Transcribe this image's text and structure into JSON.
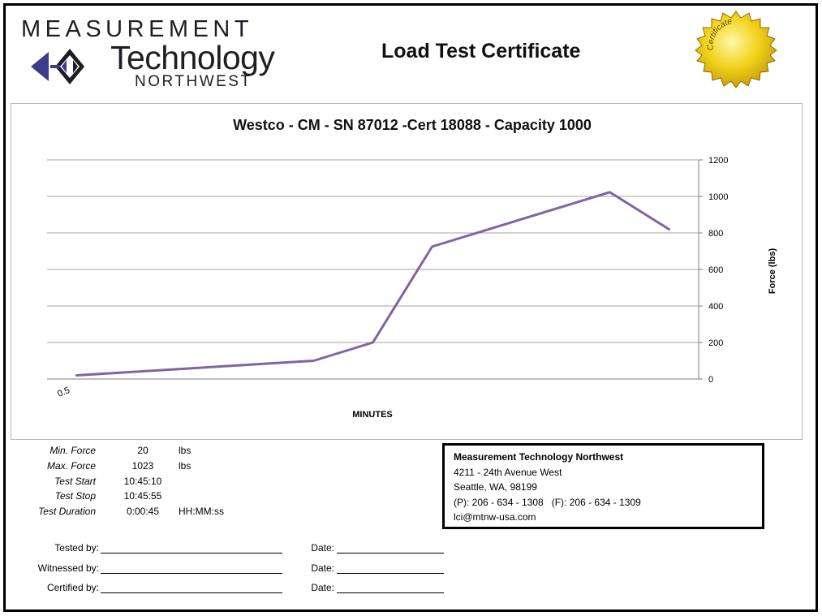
{
  "header": {
    "logo_line1": "MEASUREMENT",
    "logo_line2": "Technology",
    "logo_line3": "NORTHWEST",
    "title": "Load Test Certificate",
    "seal_text": "Certificate"
  },
  "chart_data": {
    "type": "line",
    "title": "Westco - CM - SN 87012 -Cert 18088 - Capacity 1000",
    "xlabel": "MINUTES",
    "ylabel": "Force (lbs)",
    "x_tick_labels": [
      "0.5"
    ],
    "y_axis_position": "right",
    "ylim": [
      0,
      1200
    ],
    "y_ticks": [
      0,
      200,
      400,
      600,
      800,
      1000,
      1200
    ],
    "grid": true,
    "series": [
      {
        "color": "#8064a2",
        "points": [
          {
            "x": 0.5,
            "y": 20
          },
          {
            "x": 4.5,
            "y": 100
          },
          {
            "x": 5.5,
            "y": 200
          },
          {
            "x": 6.5,
            "y": 725
          },
          {
            "x": 9.5,
            "y": 1023
          },
          {
            "x": 10.5,
            "y": 820
          }
        ]
      }
    ],
    "xlim": [
      0,
      11
    ]
  },
  "stats": [
    {
      "label": "Min. Force",
      "value": "20",
      "unit": "lbs"
    },
    {
      "label": "Max. Force",
      "value": "1023",
      "unit": "lbs"
    },
    {
      "label": "Test Start",
      "value": "10:45:10",
      "unit": ""
    },
    {
      "label": "Test Stop",
      "value": "10:45:55",
      "unit": ""
    },
    {
      "label": "Test Duration",
      "value": "0:00:45",
      "unit": "HH:MM:ss"
    }
  ],
  "contact": {
    "company": "Measurement Technology Northwest",
    "address1": "4211 - 24th Avenue West",
    "address2": "Seattle, WA, 98199",
    "phone": "(P): 206 - 634 - 1308   (F): 206 - 634 - 1309",
    "email": "lci@mtnw-usa.com"
  },
  "signatures": {
    "tested_by": "Tested by:",
    "witnessed_by": "Witnessed by:",
    "certified_by": "Certified by:",
    "date": "Date:"
  },
  "colors": {
    "series_line": "#8064a2",
    "gridline": "#a6a6a6",
    "seal_gold": "#f2d21c"
  }
}
